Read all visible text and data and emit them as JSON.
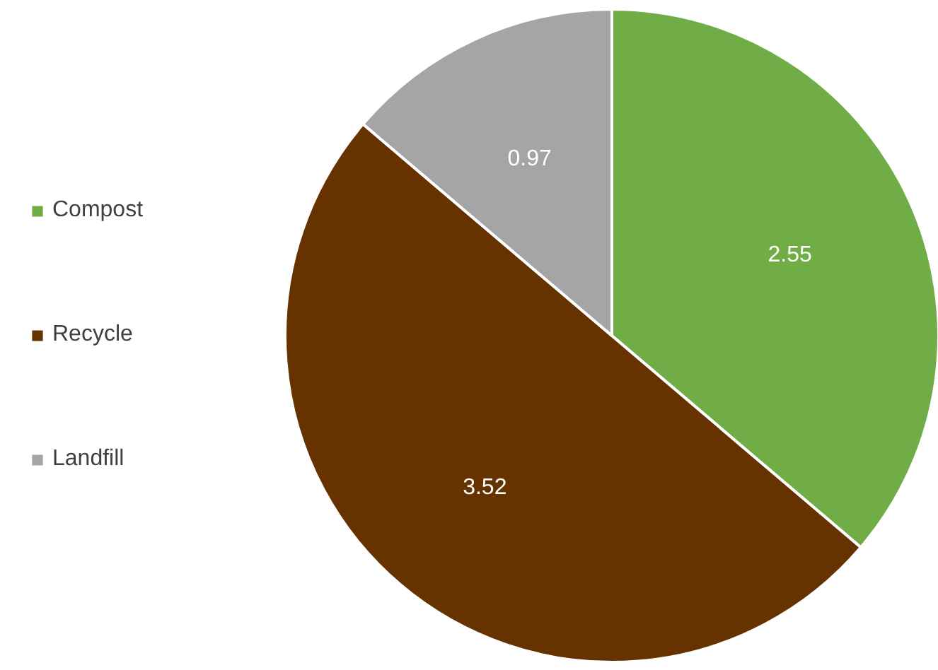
{
  "chart_data": {
    "type": "pie",
    "categories": [
      "Compost",
      "Recycle",
      "Landfill"
    ],
    "values": [
      2.55,
      3.52,
      0.97
    ],
    "colors": [
      "#70ad47",
      "#663300",
      "#a5a5a5"
    ],
    "data_labels": true,
    "legend": "left"
  }
}
